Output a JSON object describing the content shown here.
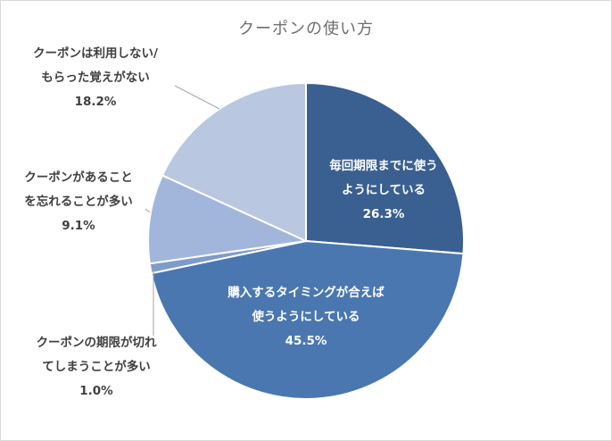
{
  "chart_data": {
    "type": "pie",
    "title": "クーポンの使い方",
    "start_angle_deg": 0,
    "direction": "clockwise",
    "slices": [
      {
        "lines": [
          "毎回期限までに使う",
          "ようにしている"
        ],
        "value_label": "26.3%",
        "value": 26.3,
        "color": "#3a5f91",
        "label_position": "inside"
      },
      {
        "lines": [
          "購入するタイミングが合えば",
          "使うようにしている"
        ],
        "value_label": "45.5%",
        "value": 45.5,
        "color": "#4a77b0",
        "label_position": "inside"
      },
      {
        "lines": [
          "クーポンの期限が切れ",
          "てしまうことが多い"
        ],
        "value_label": "1.0%",
        "value": 1.0,
        "color": "#7e9bcb",
        "label_position": "outside"
      },
      {
        "lines": [
          "クーポンがあること",
          "を忘れることが多い"
        ],
        "value_label": "9.1%",
        "value": 9.1,
        "color": "#a2b6db",
        "label_position": "outside"
      },
      {
        "lines": [
          "クーポンは利用しない/",
          "もらった覚えがない"
        ],
        "value_label": "18.2%",
        "value": 18.2,
        "color": "#b9c7e1",
        "label_position": "outside"
      }
    ],
    "legend": "none",
    "grid": false
  }
}
